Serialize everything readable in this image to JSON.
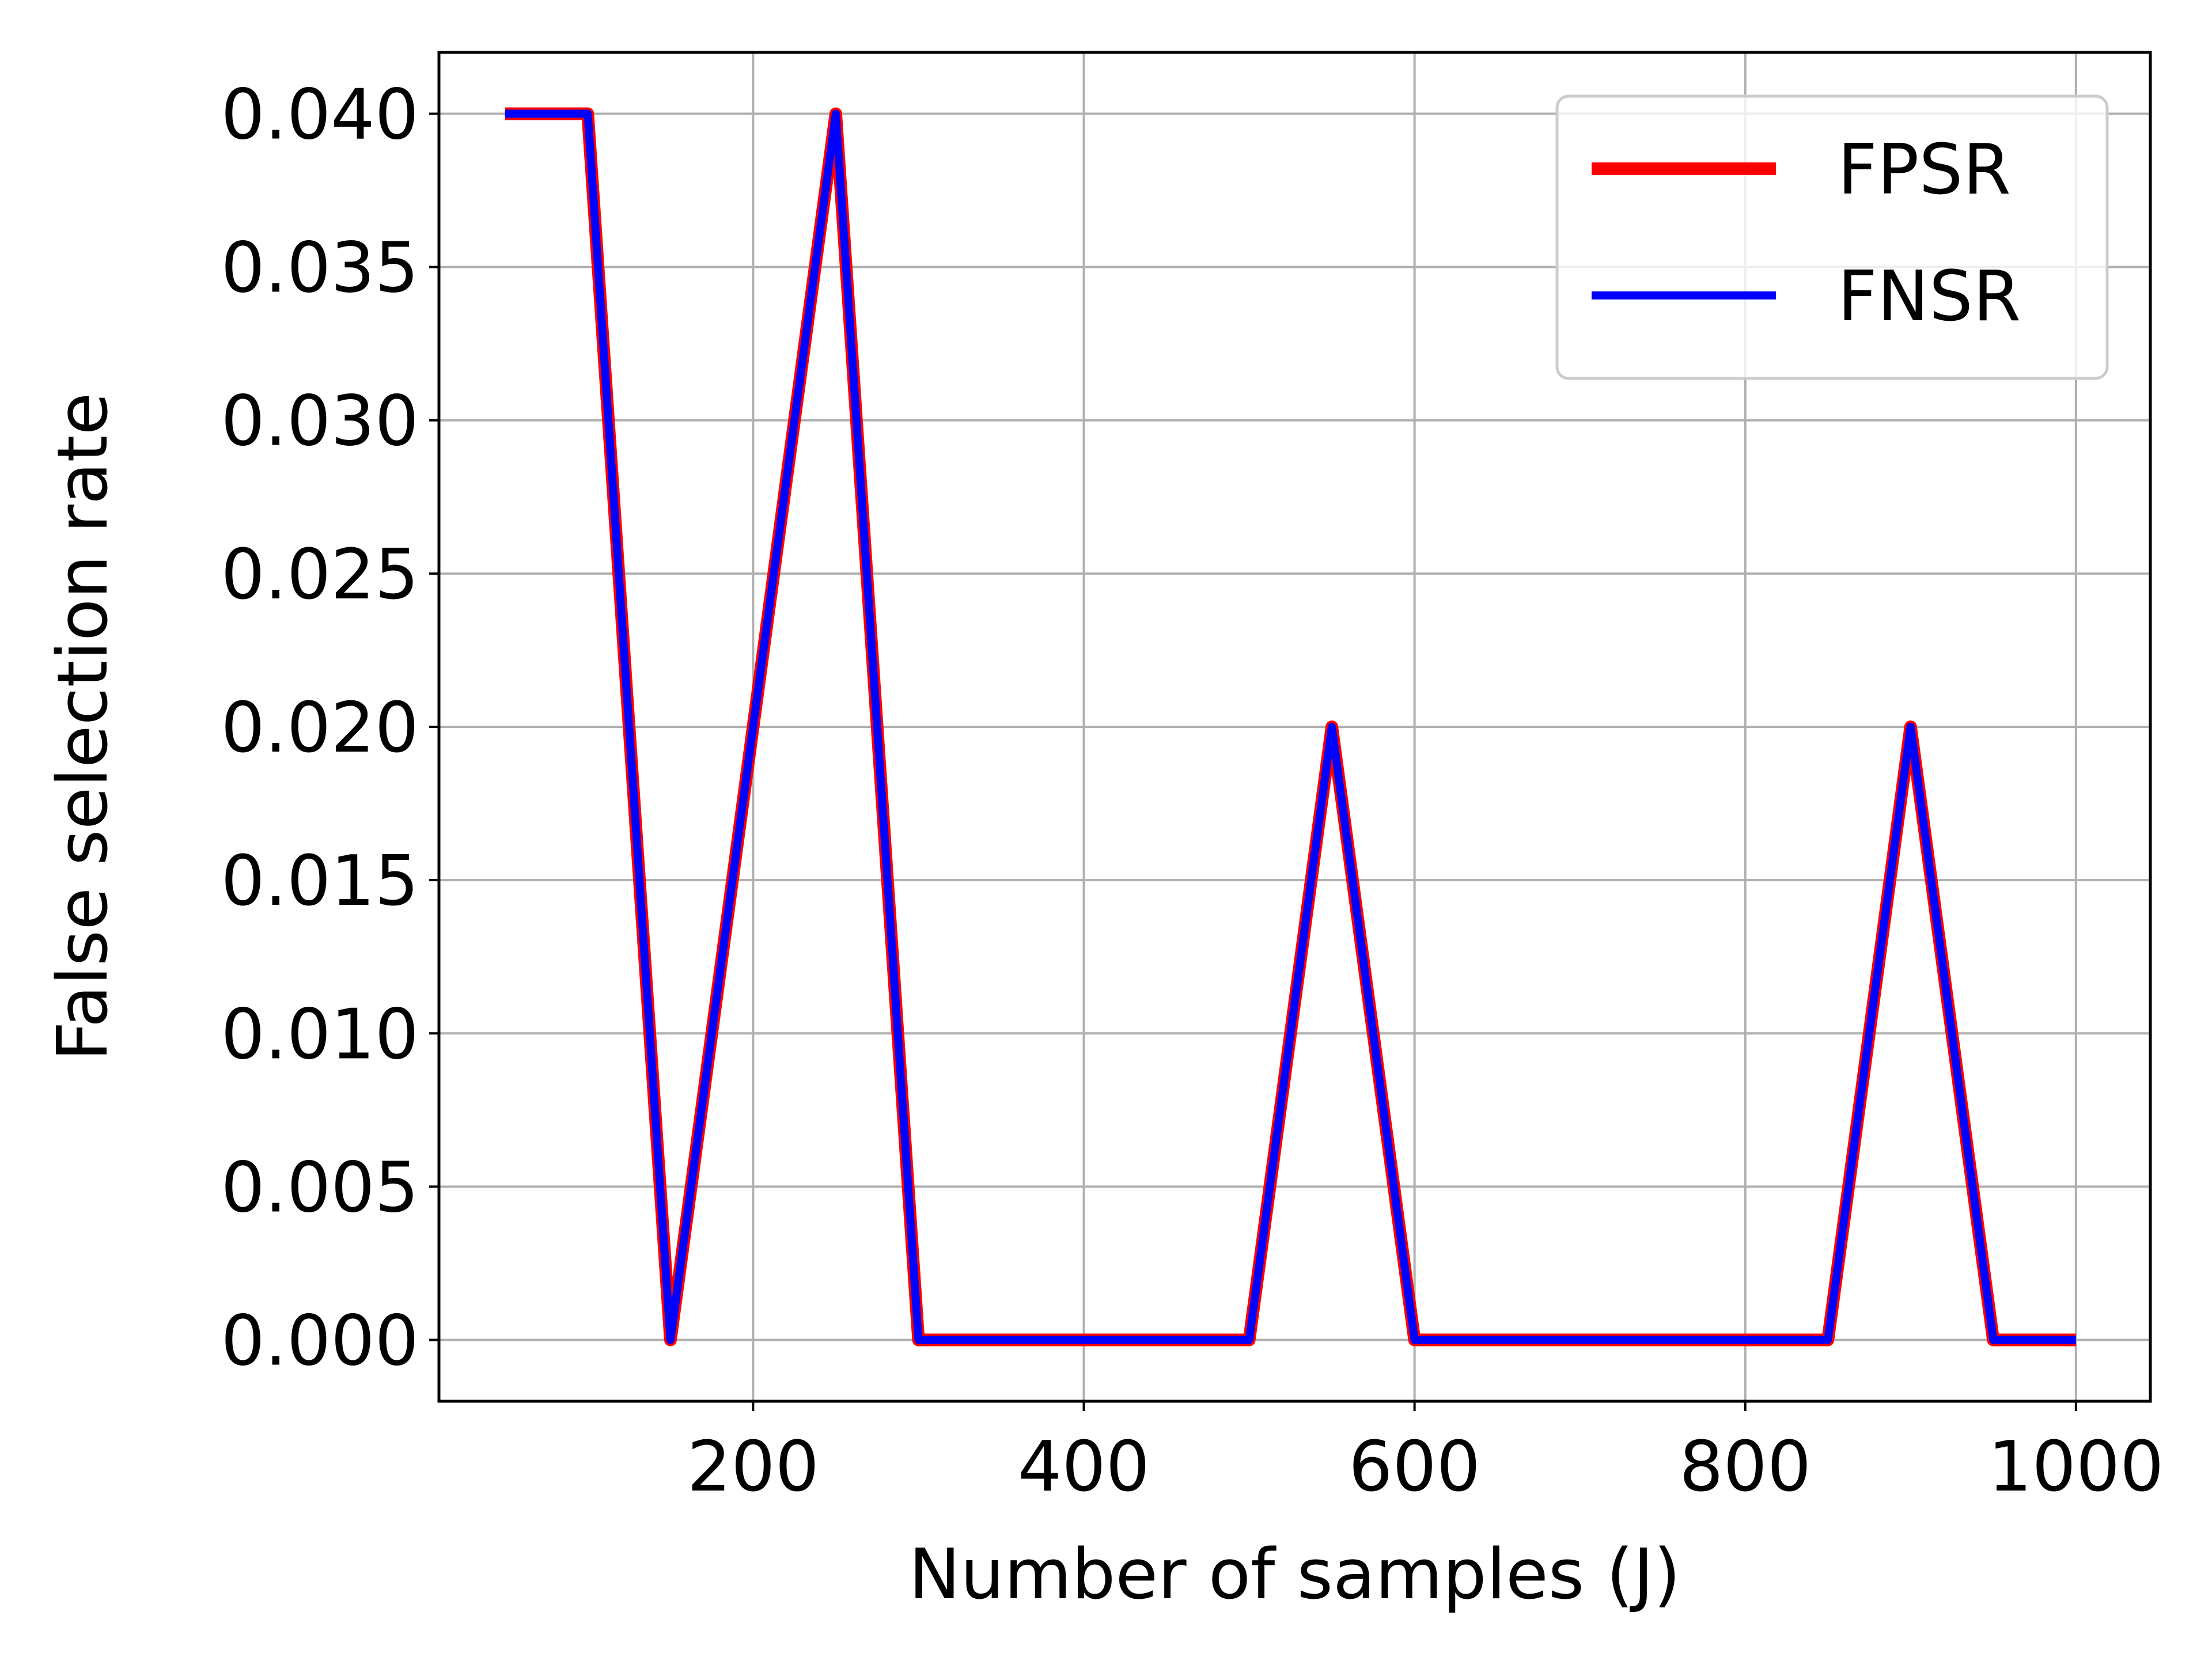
{
  "chart_data": {
    "type": "line",
    "title": "",
    "xlabel": "Number of samples (J)",
    "ylabel": "False selection rate",
    "x": [
      50,
      100,
      150,
      200,
      250,
      300,
      350,
      400,
      450,
      500,
      550,
      600,
      650,
      700,
      750,
      800,
      850,
      900,
      950,
      1000
    ],
    "xlim": [
      10,
      1045
    ],
    "ylim": [
      -0.002,
      0.042
    ],
    "xticks": [
      200,
      400,
      600,
      800,
      1000
    ],
    "xtick_labels": [
      "200",
      "400",
      "600",
      "800",
      "1000"
    ],
    "yticks": [
      0.0,
      0.005,
      0.01,
      0.015,
      0.02,
      0.025,
      0.03,
      0.035,
      0.04
    ],
    "ytick_labels": [
      "0.000",
      "0.005",
      "0.010",
      "0.015",
      "0.020",
      "0.025",
      "0.030",
      "0.035",
      "0.040"
    ],
    "grid": true,
    "legend_position": "top-right",
    "series": [
      {
        "name": "FPSR",
        "color": "#ff0000",
        "values": [
          0.04,
          0.04,
          0.0,
          0.02,
          0.04,
          0.0,
          0.0,
          0.0,
          0.0,
          0.0,
          0.02,
          0.0,
          0.0,
          0.0,
          0.0,
          0.0,
          0.0,
          0.02,
          0.0,
          0.0
        ]
      },
      {
        "name": "FNSR",
        "color": "#0000ff",
        "values": [
          0.04,
          0.04,
          0.0,
          0.02,
          0.04,
          0.0,
          0.0,
          0.0,
          0.0,
          0.0,
          0.02,
          0.0,
          0.0,
          0.0,
          0.0,
          0.0,
          0.0,
          0.02,
          0.0,
          0.0
        ]
      }
    ]
  }
}
